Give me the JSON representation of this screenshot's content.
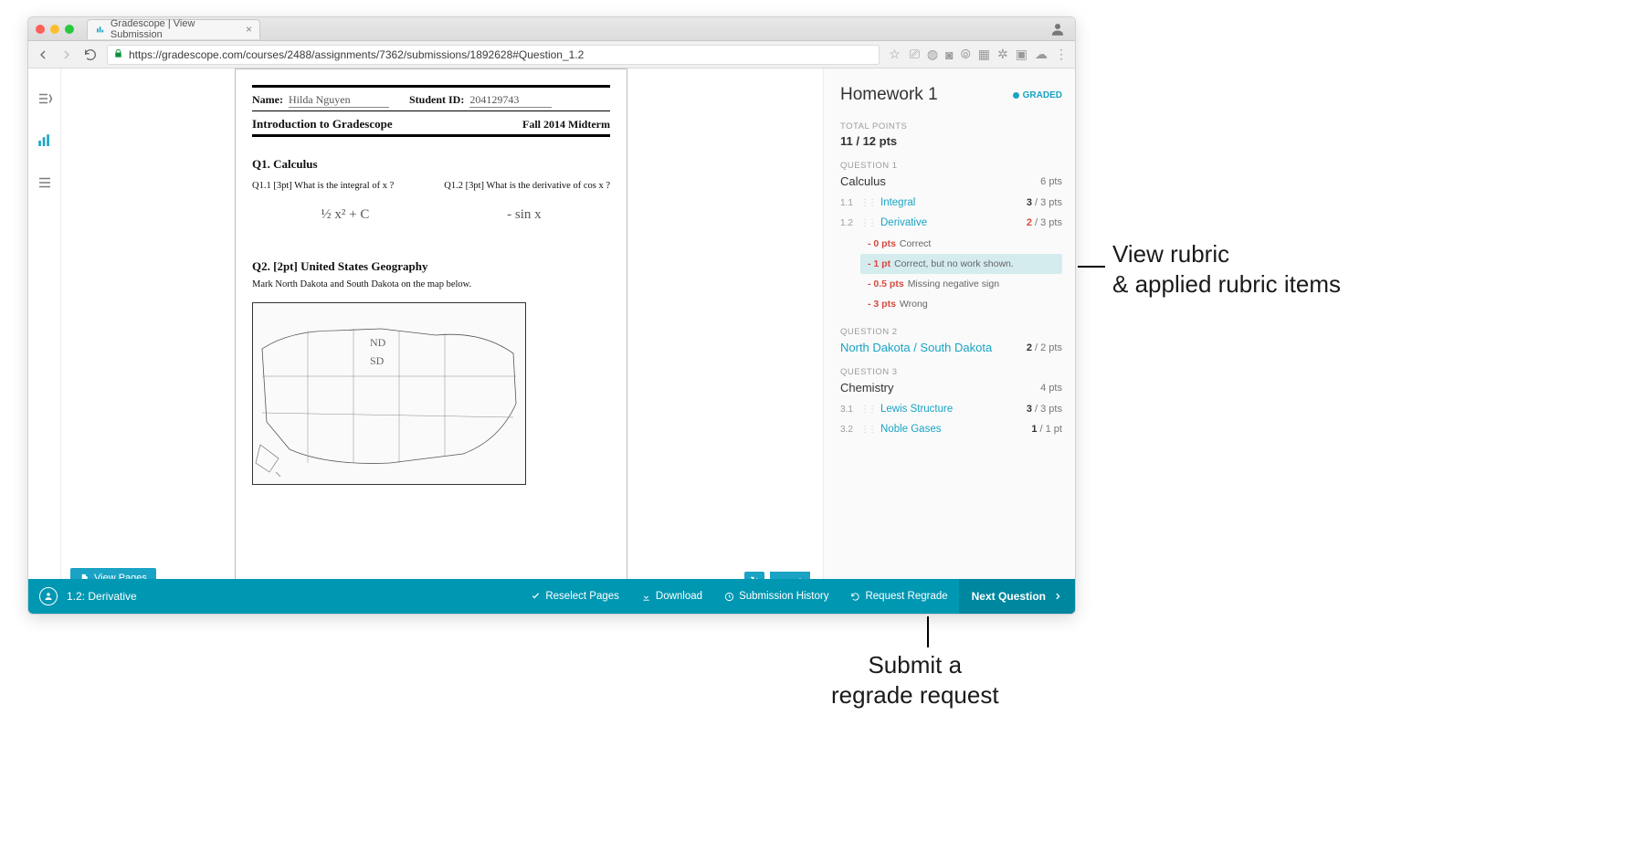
{
  "browser": {
    "tab_title": "Gradescope | View Submission",
    "url": "https://gradescope.com/courses/2488/assignments/7362/submissions/1892628#Question_1.2"
  },
  "document": {
    "name_label": "Name:",
    "student_name": "Hilda Nguyen",
    "sid_label": "Student ID:",
    "student_id": "204129743",
    "course": "Introduction to Gradescope",
    "term": "Fall 2014 Midterm",
    "q1_title": "Q1.  Calculus",
    "q1_1": "Q1.1  [3pt] What is the integral of x ?",
    "q1_2": "Q1.2  [3pt]  What is the derivative of  cos x ?",
    "q1_1_ans": "½ x² + C",
    "q1_2_ans": "- sin x",
    "q2_title": "Q2.  [2pt] United States Geography",
    "q2_instr": "Mark North Dakota and South Dakota on the map below.",
    "map_nd": "ND",
    "map_sd": "SD"
  },
  "buttons": {
    "view_pages": "View Pages",
    "reselect": "Reselect Pages",
    "download": "Download",
    "history": "Submission History",
    "regrade": "Request Regrade",
    "next_q": "Next Question"
  },
  "footer": {
    "current": "1.2: Derivative"
  },
  "panel": {
    "title": "Homework 1",
    "graded": "GRADED",
    "total_label": "TOTAL POINTS",
    "total_value": "11 / 12 pts",
    "questions": [
      {
        "label": "QUESTION 1",
        "name": "Calculus",
        "pts": "6 pts",
        "subs": [
          {
            "num": "1.1",
            "name": "Integral",
            "earn": "3",
            "of": " / 3 pts",
            "red": false
          },
          {
            "num": "1.2",
            "name": "Derivative",
            "earn": "2",
            "of": " / 3 pts",
            "red": true,
            "rubric": [
              {
                "pts": "- 0 pts",
                "text": "Correct",
                "sel": false
              },
              {
                "pts": "- 1 pt",
                "text": "Correct, but no work shown.",
                "sel": true
              },
              {
                "pts": "- 0.5 pts",
                "text": "Missing negative sign",
                "sel": false
              },
              {
                "pts": "- 3 pts",
                "text": "Wrong",
                "sel": false
              }
            ]
          }
        ]
      },
      {
        "label": "QUESTION 2",
        "name": "North Dakota / South Dakota",
        "pts": "2 / 2 pts",
        "link": true,
        "earn": "2"
      },
      {
        "label": "QUESTION 3",
        "name": "Chemistry",
        "pts": "4 pts",
        "subs": [
          {
            "num": "3.1",
            "name": "Lewis Structure",
            "earn": "3",
            "of": " / 3 pts",
            "red": false
          },
          {
            "num": "3.2",
            "name": "Noble Gases",
            "earn": "1",
            "of": " / 1 pt",
            "red": false
          }
        ]
      }
    ]
  },
  "annotations": {
    "rubric": "View rubric\n& applied rubric items",
    "regrade": "Submit a\nregrade request"
  },
  "colors": {
    "accent": "#1aa3c4",
    "footer": "#0097b2",
    "danger": "#d64a3f"
  }
}
